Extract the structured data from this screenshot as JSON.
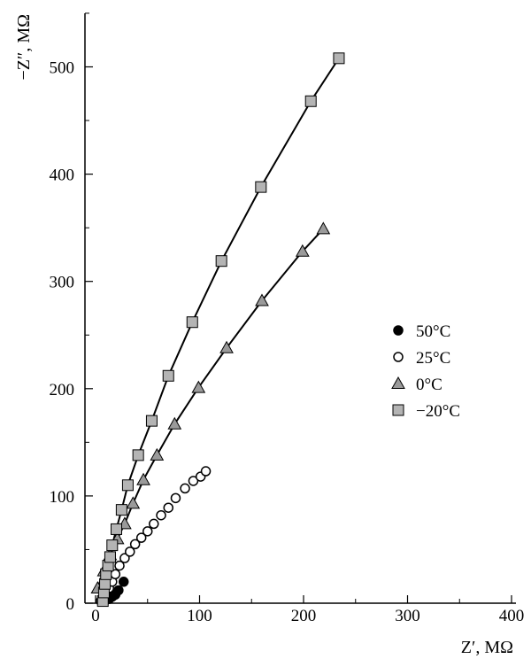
{
  "chart_data": {
    "type": "scatter",
    "title": "",
    "xlabel": "Z′, MΩ",
    "ylabel": "−Z″, MΩ",
    "xlim": [
      -5,
      400
    ],
    "ylim": [
      0,
      550
    ],
    "x_ticks": [
      0,
      100,
      200,
      300,
      400
    ],
    "y_ticks": [
      0,
      100,
      200,
      300,
      400,
      500
    ],
    "grid": false,
    "legend_position": "right",
    "series": [
      {
        "name": "50°C",
        "marker": "circle",
        "fill": "#000000",
        "line": false,
        "points": [
          [
            10,
            3
          ],
          [
            13,
            4
          ],
          [
            16,
            6
          ],
          [
            19,
            8
          ],
          [
            22,
            12
          ],
          [
            27,
            20
          ]
        ]
      },
      {
        "name": "25°C",
        "marker": "circle",
        "fill": "#ffffff",
        "line": false,
        "points": [
          [
            5,
            2
          ],
          [
            8,
            5
          ],
          [
            10,
            9
          ],
          [
            13,
            14
          ],
          [
            16,
            20
          ],
          [
            19,
            27
          ],
          [
            23,
            35
          ],
          [
            28,
            42
          ],
          [
            33,
            48
          ],
          [
            38,
            55
          ],
          [
            44,
            61
          ],
          [
            50,
            67
          ],
          [
            56,
            74
          ],
          [
            63,
            82
          ],
          [
            70,
            89
          ],
          [
            77,
            98
          ],
          [
            86,
            107
          ],
          [
            94,
            114
          ],
          [
            101,
            118
          ],
          [
            106,
            123
          ]
        ]
      },
      {
        "name": "0°C",
        "marker": "triangle",
        "fill": "#9a9a9a",
        "line": true,
        "points": [
          [
            2,
            14
          ],
          [
            8,
            30
          ],
          [
            14,
            45
          ],
          [
            21,
            60
          ],
          [
            28,
            74
          ],
          [
            36,
            93
          ],
          [
            46,
            115
          ],
          [
            59,
            138
          ],
          [
            76,
            167
          ],
          [
            99,
            201
          ],
          [
            126,
            238
          ],
          [
            160,
            282
          ],
          [
            199,
            328
          ],
          [
            219,
            349
          ]
        ]
      },
      {
        "name": "−20°C",
        "marker": "square",
        "fill": "#b4b4b4",
        "line": true,
        "points": [
          [
            7,
            2
          ],
          [
            8,
            10
          ],
          [
            9,
            18
          ],
          [
            10,
            27
          ],
          [
            12,
            35
          ],
          [
            14,
            43
          ],
          [
            16,
            54
          ],
          [
            20,
            69
          ],
          [
            25,
            87
          ],
          [
            31,
            110
          ],
          [
            41,
            138
          ],
          [
            54,
            170
          ],
          [
            70,
            212
          ],
          [
            93,
            262
          ],
          [
            121,
            319
          ],
          [
            159,
            388
          ],
          [
            207,
            468
          ],
          [
            234,
            508
          ]
        ]
      }
    ]
  }
}
